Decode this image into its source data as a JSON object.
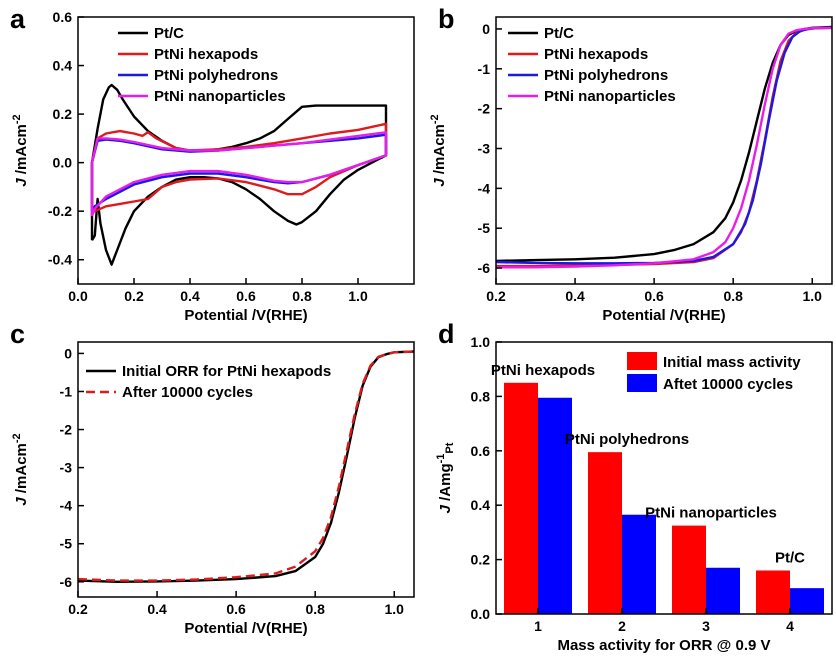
{
  "chart_data": [
    {
      "panel": "a",
      "type": "line",
      "title": "",
      "xlabel": "Potential /V(RHE)",
      "ylabel": {
        "main": "J",
        "unit": " /mAcm",
        "sup": "-2"
      },
      "xlim": [
        0.0,
        1.2
      ],
      "ylim": [
        -0.5,
        0.6
      ],
      "xticks": [
        "0.0",
        "0.2",
        "0.4",
        "0.6",
        "0.8",
        "1.0"
      ],
      "yticks": [
        "-0.4",
        "-0.2",
        "0.0",
        "0.2",
        "0.4",
        "0.6"
      ],
      "legend_position": "top-left",
      "series": [
        {
          "name": "Pt/C",
          "color": "#000000",
          "dash": false,
          "x": [
            0.05,
            0.05,
            0.07,
            0.09,
            0.11,
            0.12,
            0.14,
            0.16,
            0.2,
            0.25,
            0.3,
            0.35,
            0.4,
            0.45,
            0.5,
            0.55,
            0.6,
            0.65,
            0.7,
            0.75,
            0.8,
            0.85,
            0.9,
            1.0,
            1.1,
            1.1,
            1.05,
            1.0,
            0.95,
            0.9,
            0.85,
            0.8,
            0.78,
            0.75,
            0.7,
            0.65,
            0.6,
            0.55,
            0.5,
            0.45,
            0.4,
            0.35,
            0.3,
            0.25,
            0.2,
            0.17,
            0.14,
            0.12,
            0.1,
            0.08,
            0.07,
            0.06,
            0.05
          ],
          "y": [
            -0.32,
            0.0,
            0.14,
            0.26,
            0.31,
            0.32,
            0.3,
            0.26,
            0.19,
            0.13,
            0.09,
            0.06,
            0.05,
            0.05,
            0.055,
            0.065,
            0.08,
            0.1,
            0.13,
            0.18,
            0.23,
            0.235,
            0.235,
            0.235,
            0.235,
            0.03,
            0.0,
            -0.03,
            -0.07,
            -0.13,
            -0.2,
            -0.245,
            -0.255,
            -0.24,
            -0.2,
            -0.15,
            -0.11,
            -0.08,
            -0.065,
            -0.06,
            -0.06,
            -0.07,
            -0.1,
            -0.14,
            -0.2,
            -0.27,
            -0.36,
            -0.42,
            -0.36,
            -0.25,
            -0.15,
            -0.3,
            -0.32
          ]
        },
        {
          "name": "PtNi hexapods",
          "color": "#e0191b",
          "dash": false,
          "x": [
            0.05,
            0.05,
            0.07,
            0.1,
            0.15,
            0.2,
            0.23,
            0.25,
            0.28,
            0.35,
            0.4,
            0.5,
            0.6,
            0.7,
            0.8,
            0.9,
            1.0,
            1.1,
            1.1,
            1.0,
            0.9,
            0.85,
            0.8,
            0.75,
            0.7,
            0.6,
            0.5,
            0.4,
            0.35,
            0.3,
            0.27,
            0.25,
            0.2,
            0.15,
            0.1,
            0.06,
            0.05
          ],
          "y": [
            -0.18,
            0.0,
            0.1,
            0.12,
            0.13,
            0.12,
            0.11,
            0.125,
            0.1,
            0.06,
            0.05,
            0.055,
            0.065,
            0.08,
            0.1,
            0.12,
            0.135,
            0.16,
            0.03,
            -0.01,
            -0.06,
            -0.1,
            -0.13,
            -0.13,
            -0.11,
            -0.08,
            -0.065,
            -0.07,
            -0.08,
            -0.1,
            -0.13,
            -0.15,
            -0.16,
            -0.17,
            -0.18,
            -0.2,
            -0.18
          ]
        },
        {
          "name": "PtNi polyhedrons",
          "color": "#1a19e6",
          "dash": false,
          "x": [
            0.05,
            0.05,
            0.07,
            0.1,
            0.15,
            0.2,
            0.3,
            0.4,
            0.5,
            0.6,
            0.7,
            0.8,
            0.9,
            1.0,
            1.1,
            1.1,
            1.0,
            0.9,
            0.8,
            0.75,
            0.7,
            0.6,
            0.5,
            0.4,
            0.3,
            0.2,
            0.15,
            0.1,
            0.06,
            0.05
          ],
          "y": [
            -0.2,
            0.0,
            0.09,
            0.095,
            0.09,
            0.08,
            0.055,
            0.045,
            0.05,
            0.06,
            0.07,
            0.08,
            0.09,
            0.1,
            0.115,
            0.03,
            -0.01,
            -0.05,
            -0.08,
            -0.085,
            -0.08,
            -0.06,
            -0.045,
            -0.045,
            -0.06,
            -0.09,
            -0.12,
            -0.15,
            -0.18,
            -0.2
          ]
        },
        {
          "name": "PtNi nanoparticles",
          "color": "#e81ee8",
          "dash": false,
          "x": [
            0.05,
            0.05,
            0.07,
            0.1,
            0.15,
            0.2,
            0.3,
            0.4,
            0.5,
            0.6,
            0.7,
            0.8,
            0.9,
            1.0,
            1.1,
            1.1,
            1.0,
            0.9,
            0.8,
            0.75,
            0.7,
            0.6,
            0.5,
            0.4,
            0.3,
            0.2,
            0.15,
            0.1,
            0.06,
            0.05
          ],
          "y": [
            -0.22,
            0.0,
            0.1,
            0.1,
            0.095,
            0.085,
            0.06,
            0.05,
            0.05,
            0.06,
            0.07,
            0.08,
            0.095,
            0.11,
            0.125,
            0.03,
            -0.01,
            -0.05,
            -0.08,
            -0.08,
            -0.075,
            -0.05,
            -0.035,
            -0.035,
            -0.05,
            -0.08,
            -0.11,
            -0.14,
            -0.19,
            -0.22
          ]
        }
      ]
    },
    {
      "panel": "b",
      "type": "line",
      "title": "",
      "xlabel": "Potential /V(RHE)",
      "ylabel": {
        "main": "J",
        "unit": " /mAcm",
        "sup": "-2"
      },
      "xlim": [
        0.2,
        1.05
      ],
      "ylim": [
        -6.4,
        0.3
      ],
      "xticks": [
        "0.2",
        "0.4",
        "0.6",
        "0.8",
        "1.0"
      ],
      "yticks": [
        "0",
        "-1",
        "-2",
        "-3",
        "-4",
        "-5",
        "-6"
      ],
      "legend_position": "top-left",
      "series": [
        {
          "name": "Pt/C",
          "color": "#000000",
          "dash": false,
          "x": [
            0.2,
            0.3,
            0.4,
            0.5,
            0.6,
            0.65,
            0.7,
            0.75,
            0.78,
            0.8,
            0.82,
            0.84,
            0.86,
            0.88,
            0.9,
            0.92,
            0.94,
            0.96,
            0.98,
            1.0,
            1.05
          ],
          "y": [
            -5.82,
            -5.8,
            -5.78,
            -5.74,
            -5.65,
            -5.55,
            -5.4,
            -5.1,
            -4.75,
            -4.35,
            -3.8,
            -3.1,
            -2.3,
            -1.5,
            -0.85,
            -0.4,
            -0.15,
            -0.05,
            0.0,
            0.03,
            0.05
          ]
        },
        {
          "name": "PtNi hexapods",
          "color": "#e0191b",
          "dash": false,
          "x": [
            0.2,
            0.3,
            0.4,
            0.5,
            0.6,
            0.7,
            0.75,
            0.8,
            0.82,
            0.84,
            0.86,
            0.88,
            0.9,
            0.92,
            0.94,
            0.96,
            0.98,
            1.0,
            1.05
          ],
          "y": [
            -5.95,
            -5.95,
            -5.93,
            -5.92,
            -5.9,
            -5.85,
            -5.75,
            -5.4,
            -5.1,
            -4.6,
            -3.8,
            -2.8,
            -1.7,
            -0.8,
            -0.3,
            -0.1,
            -0.02,
            0.02,
            0.03
          ]
        },
        {
          "name": "PtNi polyhedrons",
          "color": "#1a19e6",
          "dash": false,
          "x": [
            0.2,
            0.3,
            0.4,
            0.5,
            0.6,
            0.7,
            0.75,
            0.8,
            0.83,
            0.85,
            0.87,
            0.89,
            0.91,
            0.93,
            0.95,
            0.97,
            0.99,
            1.01,
            1.05
          ],
          "y": [
            -5.85,
            -5.87,
            -5.88,
            -5.88,
            -5.87,
            -5.82,
            -5.72,
            -5.4,
            -4.9,
            -4.3,
            -3.4,
            -2.3,
            -1.3,
            -0.6,
            -0.2,
            -0.05,
            0.0,
            0.02,
            0.03
          ]
        },
        {
          "name": "PtNi nanoparticles",
          "color": "#e81ee8",
          "dash": false,
          "x": [
            0.2,
            0.3,
            0.4,
            0.5,
            0.6,
            0.7,
            0.75,
            0.78,
            0.8,
            0.82,
            0.84,
            0.86,
            0.88,
            0.9,
            0.92,
            0.94,
            0.96,
            0.98,
            1.0,
            1.05
          ],
          "y": [
            -5.98,
            -5.98,
            -5.96,
            -5.93,
            -5.88,
            -5.78,
            -5.6,
            -5.35,
            -5.0,
            -4.5,
            -3.8,
            -2.9,
            -1.9,
            -1.0,
            -0.4,
            -0.12,
            -0.03,
            0.0,
            0.02,
            0.03
          ]
        }
      ]
    },
    {
      "panel": "c",
      "type": "line",
      "title": "",
      "xlabel": "Potential /V(RHE)",
      "ylabel": {
        "main": "J",
        "unit": " /mAcm",
        "sup": "-2"
      },
      "xlim": [
        0.2,
        1.05
      ],
      "ylim": [
        -6.4,
        0.3
      ],
      "xticks": [
        "0.2",
        "0.4",
        "0.6",
        "0.8",
        "1.0"
      ],
      "yticks": [
        "0",
        "-1",
        "-2",
        "-3",
        "-4",
        "-5",
        "-6"
      ],
      "legend_position": "top-left",
      "series": [
        {
          "name": "Initial ORR for PtNi hexapods",
          "color": "#000000",
          "dash": false,
          "x": [
            0.2,
            0.3,
            0.4,
            0.5,
            0.6,
            0.7,
            0.75,
            0.8,
            0.82,
            0.84,
            0.86,
            0.88,
            0.9,
            0.92,
            0.94,
            0.96,
            0.98,
            1.0,
            1.05
          ],
          "y": [
            -5.97,
            -6.0,
            -5.99,
            -5.97,
            -5.93,
            -5.85,
            -5.72,
            -5.35,
            -5.0,
            -4.45,
            -3.65,
            -2.7,
            -1.7,
            -0.85,
            -0.35,
            -0.1,
            -0.02,
            0.03,
            0.05
          ]
        },
        {
          "name": "After 10000 cycles",
          "color": "#e0191b",
          "dash": true,
          "x": [
            0.2,
            0.3,
            0.4,
            0.5,
            0.6,
            0.7,
            0.75,
            0.8,
            0.82,
            0.84,
            0.86,
            0.88,
            0.9,
            0.92,
            0.94,
            0.96,
            0.98,
            1.0,
            1.05
          ],
          "y": [
            -5.93,
            -5.97,
            -5.97,
            -5.94,
            -5.88,
            -5.78,
            -5.6,
            -5.2,
            -4.85,
            -4.3,
            -3.5,
            -2.55,
            -1.6,
            -0.8,
            -0.32,
            -0.09,
            -0.02,
            0.03,
            0.05
          ]
        }
      ]
    },
    {
      "panel": "d",
      "type": "bar",
      "title": "",
      "xlabel": "Mass activity for ORR @ 0.9 V",
      "ylabel": {
        "main": "J",
        "unit": " /Amg",
        "sup": "-1",
        "sub": "Pt"
      },
      "ylim": [
        0.0,
        1.0
      ],
      "yticks": [
        "0.0",
        "0.2",
        "0.4",
        "0.6",
        "0.8",
        "1.0"
      ],
      "categories": [
        "1",
        "2",
        "3",
        "4"
      ],
      "category_labels": [
        "PtNi hexapods",
        "PtNi polyhedrons",
        "PtNi nanoparticles",
        "Pt/C"
      ],
      "legend_position": "top-right",
      "series": [
        {
          "name": "Initial mass activity",
          "color": "#ff0000",
          "values": [
            0.85,
            0.595,
            0.325,
            0.16
          ]
        },
        {
          "name": "Aftet 10000 cycles",
          "color": "#0000ff",
          "values": [
            0.795,
            0.365,
            0.17,
            0.095
          ]
        }
      ]
    }
  ],
  "panel_letters": [
    "a",
    "b",
    "c",
    "d"
  ]
}
